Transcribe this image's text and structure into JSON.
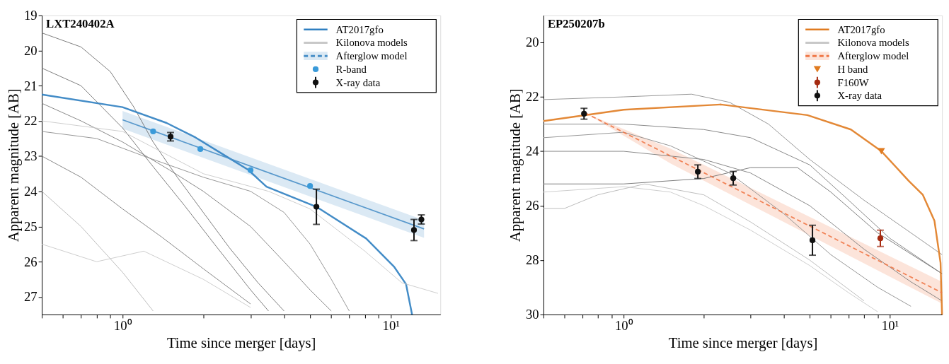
{
  "chart_data": [
    {
      "type": "line",
      "title": "LXT240402A",
      "xlabel": "Time since merger [days]",
      "ylabel": "Apparent magnitude [AB]",
      "log": "x",
      "legend": "top right",
      "grid": false,
      "xlim": [
        0.5,
        15.3
      ],
      "ylim": [
        27.5,
        19
      ],
      "xticks": [
        {
          "value": 0.5,
          "label": null
        },
        {
          "value": 0.6,
          "label": null
        },
        {
          "value": 0.7,
          "label": null
        },
        {
          "value": 0.8,
          "label": null
        },
        {
          "value": 0.9,
          "label": null
        },
        {
          "value": 1,
          "label": "10⁰"
        },
        {
          "value": 2,
          "label": null
        },
        {
          "value": 3,
          "label": null
        },
        {
          "value": 4,
          "label": null
        },
        {
          "value": 5,
          "label": null
        },
        {
          "value": 6,
          "label": null
        },
        {
          "value": 7,
          "label": null
        },
        {
          "value": 8,
          "label": null
        },
        {
          "value": 9,
          "label": null
        },
        {
          "value": 10,
          "label": "10¹"
        }
      ],
      "yticks": [
        19,
        20,
        21,
        22,
        23,
        24,
        25,
        26,
        27
      ],
      "series": [
        {
          "name": "AT2017gfo",
          "color": "#2f7fc1",
          "x": [
            0.5,
            1.0,
            1.46,
            1.87,
            2.38,
            2.94,
            3.44,
            5.28,
            8.09,
            10.3,
            11.4,
            12.0
          ],
          "values": [
            21.25,
            21.61,
            22.06,
            22.47,
            22.96,
            23.39,
            23.87,
            24.44,
            25.34,
            26.15,
            26.64,
            27.5
          ]
        },
        {
          "name": "Kilonova models",
          "color": "#c8c8c8",
          "x": [
            0.5,
            1.0,
            2.0,
            3.5,
            5.0,
            8.0,
            11.0,
            15.0
          ],
          "values": [
            22.0,
            22.3,
            23.5,
            24.0,
            24.5,
            25.7,
            26.6,
            26.9
          ]
        },
        {
          "color": "#6e6e6e",
          "x": [
            0.5,
            0.7,
            0.9,
            1.1,
            1.3,
            1.6,
            2.0,
            2.5,
            3.2,
            4.0
          ],
          "values": [
            19.5,
            19.9,
            20.6,
            21.6,
            22.6,
            23.6,
            24.6,
            25.6,
            26.6,
            27.4
          ]
        },
        {
          "color": "#6e6e6e",
          "x": [
            0.5,
            0.7,
            1.0,
            1.3,
            1.7,
            2.2,
            3.0,
            3.5
          ],
          "values": [
            20.5,
            21.0,
            22.2,
            23.3,
            24.4,
            25.5,
            26.8,
            27.4
          ]
        },
        {
          "color": "#7a7a7a",
          "x": [
            0.5,
            0.7,
            1.0,
            1.5,
            2.0,
            3.0,
            4.0,
            5.0,
            6.0
          ],
          "values": [
            21.5,
            22.0,
            22.6,
            23.4,
            24.0,
            25.0,
            26.0,
            26.8,
            27.4
          ]
        },
        {
          "color": "#8a8a8a",
          "x": [
            0.5,
            0.8,
            1.2,
            2.0,
            3.0,
            4.0,
            5.0,
            6.0,
            7.0
          ],
          "values": [
            22.3,
            22.5,
            23.0,
            23.6,
            24.0,
            24.6,
            25.5,
            26.5,
            27.4
          ]
        },
        {
          "color": "#7a7a7a",
          "x": [
            0.5,
            0.7,
            1.0,
            1.4,
            2.0,
            3.0
          ],
          "values": [
            23.0,
            23.6,
            24.5,
            25.3,
            26.2,
            27.2
          ]
        },
        {
          "color": "#b4b4b4",
          "x": [
            0.5,
            0.7,
            1.0,
            1.3
          ],
          "values": [
            24.0,
            25.0,
            26.3,
            27.4
          ]
        },
        {
          "color": "#c8c8c8",
          "x": [
            0.5,
            0.8,
            1.2,
            2.0,
            3.0
          ],
          "values": [
            25.5,
            26.0,
            25.7,
            26.5,
            27.3
          ]
        },
        {
          "name": "Afterglow model",
          "color": "#4a90c8",
          "line_style": "solid",
          "x": [
            1.0,
            13.3
          ],
          "values": [
            21.97,
            25.07
          ],
          "lower": [
            21.72,
            24.82
          ],
          "upper": [
            22.22,
            25.32
          ]
        },
        {
          "name": "R-band",
          "type": "scatter",
          "marker": "circle",
          "color": "#3a9ad9",
          "x": [
            1.3,
            1.95,
            3.0,
            5.0
          ],
          "values": [
            22.3,
            22.8,
            23.4,
            23.85
          ]
        },
        {
          "name": "X-ray data",
          "type": "scatter",
          "marker": "circle",
          "color": "#111111",
          "x": [
            1.51,
            5.28,
            12.2,
            13.0
          ],
          "values": [
            22.45,
            24.44,
            25.1,
            24.8
          ],
          "errors": [
            0.12,
            0.5,
            0.3,
            0.13
          ]
        }
      ]
    },
    {
      "type": "line",
      "title": "EP250207b",
      "xlabel": "Time since merger [days]",
      "ylabel": "Apparent magnitude [AB]",
      "log": "x",
      "legend": "top right",
      "grid": false,
      "xlim": [
        0.5,
        15.7
      ],
      "ylim": [
        30,
        19
      ],
      "xticks": [
        {
          "value": 0.5,
          "label": null
        },
        {
          "value": 0.6,
          "label": null
        },
        {
          "value": 0.7,
          "label": null
        },
        {
          "value": 0.8,
          "label": null
        },
        {
          "value": 0.9,
          "label": null
        },
        {
          "value": 1,
          "label": "10⁰"
        },
        {
          "value": 2,
          "label": null
        },
        {
          "value": 3,
          "label": null
        },
        {
          "value": 4,
          "label": null
        },
        {
          "value": 5,
          "label": null
        },
        {
          "value": 6,
          "label": null
        },
        {
          "value": 7,
          "label": null
        },
        {
          "value": 8,
          "label": null
        },
        {
          "value": 9,
          "label": null
        },
        {
          "value": 10,
          "label": "10¹"
        }
      ],
      "yticks": [
        20,
        22,
        24,
        26,
        28,
        30
      ],
      "series": [
        {
          "name": "AT2017gfo",
          "color": "#e07b20",
          "x": [
            0.5,
            1.0,
            2.32,
            4.9,
            7.14,
            9.3,
            11.75,
            13.3,
            14.7,
            15.5,
            15.7
          ],
          "values": [
            22.89,
            22.47,
            22.28,
            22.67,
            23.2,
            24.0,
            25.08,
            25.6,
            26.55,
            28.1,
            30
          ]
        },
        {
          "name": "Kilonova models",
          "color": "#c8c8c8",
          "x": [
            0.5,
            1.0,
            1.5,
            2.0,
            3.0,
            5.0,
            7.0,
            9.0
          ],
          "values": [
            25.5,
            25.3,
            25.5,
            26.0,
            26.9,
            28.2,
            29.2,
            29.9
          ]
        },
        {
          "color": "#8a8a8a",
          "x": [
            0.5,
            1.0,
            1.8,
            2.5,
            3.5,
            5.0,
            8.0,
            12.0,
            15.7
          ],
          "values": [
            22.1,
            22.0,
            21.9,
            22.2,
            23.0,
            24.3,
            25.8,
            27.0,
            27.8
          ]
        },
        {
          "color": "#7a7a7a",
          "x": [
            0.5,
            1.0,
            2.0,
            3.0,
            5.0,
            7.0,
            10.0,
            15.7
          ],
          "values": [
            23.0,
            23.0,
            23.2,
            23.5,
            24.5,
            25.8,
            27.2,
            28.5
          ]
        },
        {
          "color": "#7a7a7a",
          "x": [
            0.5,
            1.0,
            2.0,
            3.0,
            5.0,
            8.0,
            12.0,
            15.7
          ],
          "values": [
            24.0,
            24.0,
            24.3,
            24.8,
            26.0,
            27.6,
            28.8,
            29.5
          ]
        },
        {
          "color": "#6e6e6e",
          "x": [
            0.5,
            1.0,
            2.0,
            3.0,
            4.5,
            6.0,
            9.0,
            15.7
          ],
          "values": [
            25.2,
            25.2,
            25.0,
            24.6,
            24.6,
            25.5,
            27.0,
            28.5
          ]
        },
        {
          "color": "#b4b4b4",
          "x": [
            0.5,
            0.6,
            0.8,
            1.2,
            2.0,
            3.0,
            5.0,
            8.0
          ],
          "values": [
            26.1,
            26.1,
            25.6,
            25.2,
            25.6,
            26.6,
            28.0,
            29.5
          ]
        },
        {
          "color": "#8a8a8a",
          "x": [
            0.5,
            1.0,
            1.5,
            2.5,
            4.0,
            6.0,
            9.0,
            12.0
          ],
          "values": [
            23.5,
            23.3,
            23.8,
            24.8,
            26.3,
            27.8,
            29.0,
            29.7
          ]
        },
        {
          "name": "Afterglow model",
          "color": "#f07848",
          "line_style": "dashed",
          "x": [
            0.72,
            1.5,
            15.7
          ],
          "values": [
            22.6,
            24.17,
            29.2
          ],
          "lower": [
            22.6,
            23.9,
            28.8
          ],
          "upper": [
            22.6,
            24.45,
            29.6
          ]
        },
        {
          "name": "H band",
          "type": "scatter",
          "marker": "triangle",
          "color": "#e07b20",
          "x": [
            9.29
          ],
          "values": [
            24.0
          ]
        },
        {
          "name": "F160W",
          "type": "scatter",
          "marker": "circle",
          "color": "#a52a10",
          "x": [
            9.21
          ],
          "values": [
            27.2
          ],
          "errors": [
            0.3
          ]
        },
        {
          "name": "X-ray data",
          "type": "scatter",
          "marker": "circle",
          "color": "#111111",
          "x": [
            0.71,
            1.9,
            2.58,
            5.12
          ],
          "values": [
            22.62,
            24.75,
            24.99,
            27.27
          ],
          "errors": [
            0.2,
            0.25,
            0.25,
            0.55
          ]
        }
      ]
    }
  ]
}
